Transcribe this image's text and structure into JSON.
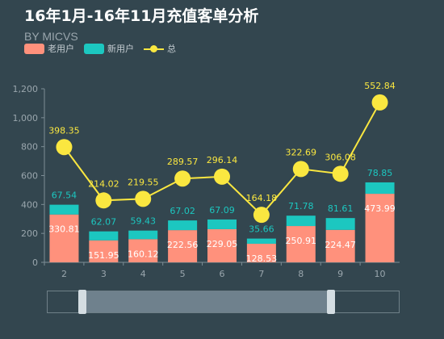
{
  "title": "16年1月-16年11月充值客单分析",
  "subtitle": "BY MICVS",
  "legend": {
    "old_users": "老用户",
    "new_users": "新用户",
    "total": "总"
  },
  "colors": {
    "background": "#33464f",
    "old_users": "#ff917c",
    "new_users": "#1cc7c0",
    "total": "#fae740",
    "axis_text": "#9aa6ad"
  },
  "chart_data": {
    "type": "bar",
    "stacked": true,
    "categories": [
      "2",
      "3",
      "4",
      "5",
      "6",
      "7",
      "8",
      "9",
      "10"
    ],
    "series": [
      {
        "name": "老用户",
        "type": "bar",
        "values": [
          330.81,
          151.95,
          160.12,
          222.56,
          229.05,
          128.53,
          250.91,
          224.47,
          473.99
        ]
      },
      {
        "name": "新用户",
        "type": "bar",
        "values": [
          67.54,
          62.07,
          59.43,
          67.02,
          67.09,
          35.66,
          71.78,
          81.61,
          78.85
        ]
      },
      {
        "name": "总",
        "type": "line",
        "values": [
          398.35,
          214.02,
          219.55,
          289.57,
          296.14,
          164.18,
          322.69,
          306.08,
          552.84
        ]
      }
    ],
    "yticks": [
      "0",
      "200",
      "400",
      "600",
      "800",
      "1,000",
      "1,200"
    ],
    "ylim": [
      0,
      1200
    ],
    "grid": false,
    "legend_position": "top-left"
  },
  "zoom": {
    "start_fraction": 0.1,
    "end_fraction": 0.8
  }
}
